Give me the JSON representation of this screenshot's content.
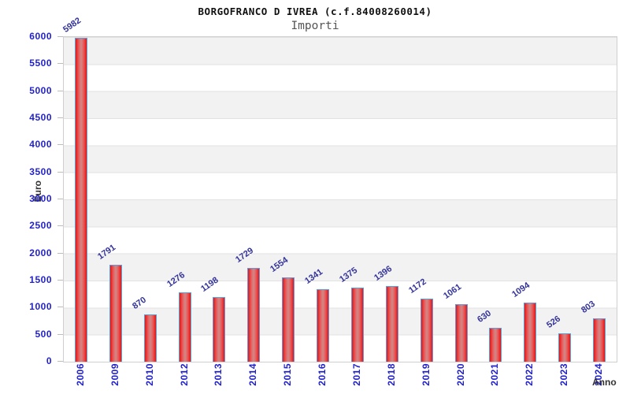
{
  "chart_data": {
    "type": "bar",
    "title": "BORGOFRANCO D IVREA (c.f.84008260014)",
    "subtitle": "Importi",
    "ylabel": "Euro",
    "xlabel": "Anno",
    "categories": [
      "2006",
      "2009",
      "2010",
      "2012",
      "2013",
      "2014",
      "2015",
      "2016",
      "2017",
      "2018",
      "2019",
      "2020",
      "2021",
      "2022",
      "2023",
      "2024"
    ],
    "values": [
      5982,
      1791,
      870,
      1276,
      1198,
      1729,
      1554,
      1341,
      1375,
      1396,
      1172,
      1061,
      630,
      1094,
      526,
      803
    ],
    "ylim": [
      0,
      6000
    ],
    "ytick_step": 500,
    "yticks": [
      0,
      500,
      1000,
      1500,
      2000,
      2500,
      3000,
      3500,
      4000,
      4500,
      5000,
      5500,
      6000
    ],
    "grid": "horizontal-bands-alternating",
    "legend": "none",
    "bar_value_labels_rotated": true,
    "x_labels_rotated_90": true,
    "colors": {
      "bar_edge": "#e51515",
      "bar_center": "#cf8a8a",
      "bar_border": "#5b9fdc",
      "tick_label": "#2222cc",
      "value_label": "#333399",
      "axis_title": "#333333",
      "band_gray": "#f2f2f2",
      "band_white": "#ffffff",
      "grid_line": "#e2e2e2",
      "plot_border": "#cfcfcf",
      "title_color": "#111111",
      "subtitle_color": "#555555"
    }
  }
}
